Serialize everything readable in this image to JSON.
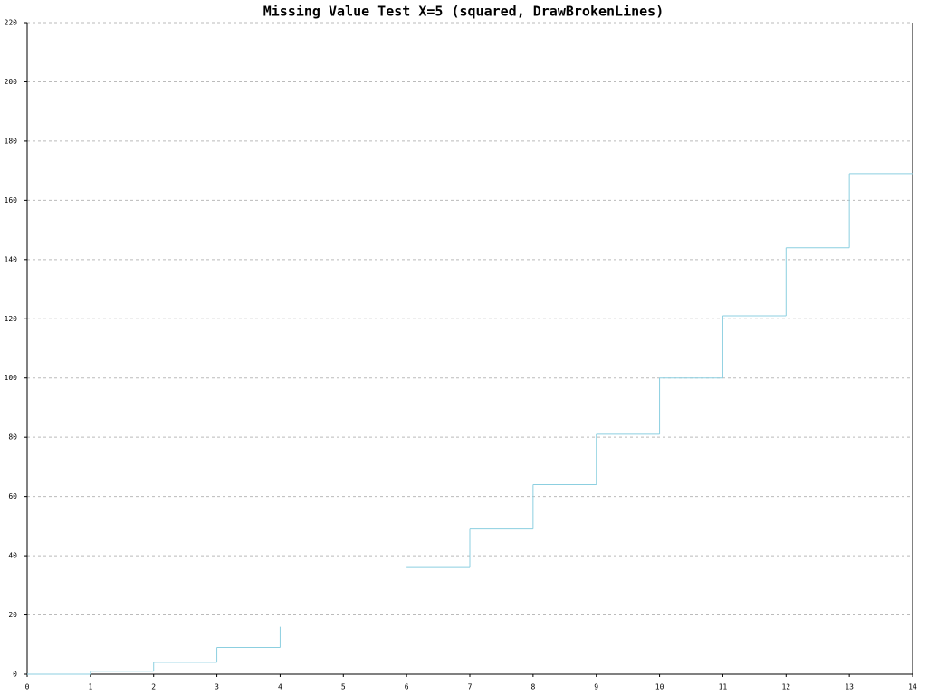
{
  "chart_data": {
    "type": "step",
    "title": "Missing Value Test X=5 (squared, DrawBrokenLines)",
    "x": [
      0,
      1,
      2,
      3,
      4,
      5,
      6,
      7,
      8,
      9,
      10,
      11,
      12,
      13
    ],
    "series": [
      {
        "color": "#8ccfe0",
        "values": [
          0,
          1,
          4,
          9,
          16,
          null,
          36,
          49,
          64,
          81,
          100,
          121,
          144,
          169
        ]
      }
    ],
    "xlim": [
      0,
      14
    ],
    "xticks": [
      0,
      1,
      2,
      3,
      4,
      5,
      6,
      7,
      8,
      9,
      10,
      11,
      12,
      13,
      14
    ],
    "ylim": [
      0,
      220
    ],
    "yticks": [
      0,
      20,
      40,
      60,
      80,
      100,
      120,
      140,
      160,
      180,
      200,
      220
    ],
    "grid": true
  }
}
